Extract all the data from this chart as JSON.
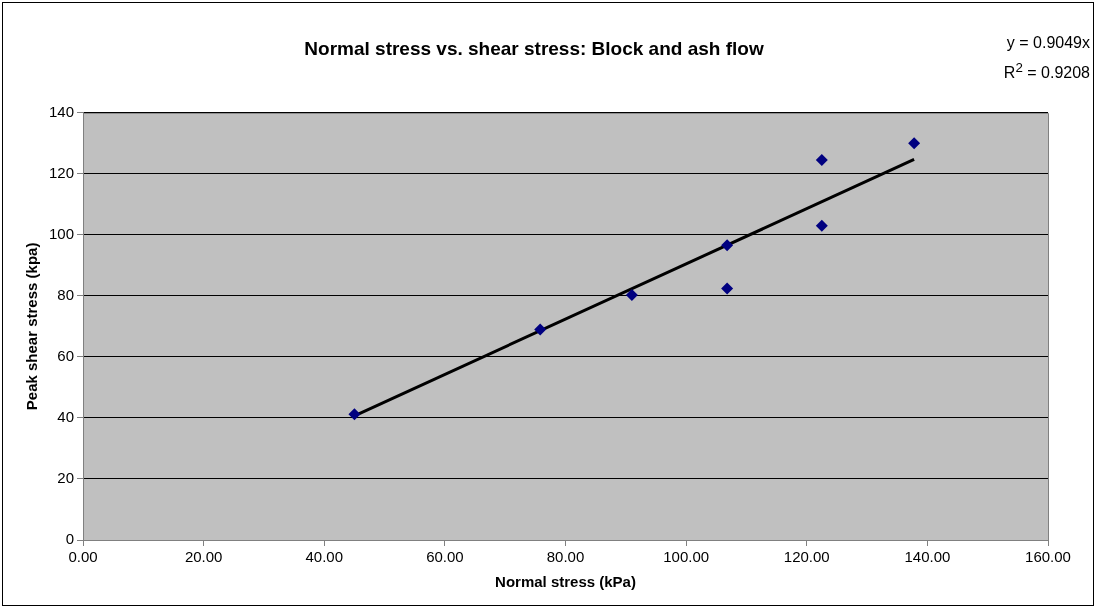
{
  "chart_data": {
    "type": "scatter",
    "title": "Normal stress vs. shear stress: Block and ash flow",
    "xlabel": "Normal stress (kPa)",
    "ylabel": "Peak shear stress (kpa)",
    "annotations": [
      "y = 0.9049x",
      "R$^{2}$ = 0.9208"
    ],
    "series": [
      {
        "color": "#000080",
        "x": [
          45,
          75.8,
          91,
          106.8,
          106.8,
          122.5,
          122.5,
          137.8
        ],
        "values": [
          41.2,
          69,
          80.3,
          96.6,
          82.4,
          124.5,
          103,
          130
        ],
        "marker": "diamond"
      },
      {
        "type": "line",
        "color": "#000000",
        "x": [
          45,
          137.8
        ],
        "values": [
          40.7,
          124.7
        ],
        "marker": "none",
        "line_style": "solid"
      }
    ],
    "xlim": [
      0,
      160
    ],
    "xticks": [
      {
        "value": 0,
        "label": "0.00"
      },
      {
        "value": 20,
        "label": "20.00"
      },
      {
        "value": 40,
        "label": "40.00"
      },
      {
        "value": 60,
        "label": "60.00"
      },
      {
        "value": 80,
        "label": "80.00"
      },
      {
        "value": 100,
        "label": "100.00"
      },
      {
        "value": 120,
        "label": "120.00"
      },
      {
        "value": 140,
        "label": "140.00"
      },
      {
        "value": 160,
        "label": "160.00"
      }
    ],
    "ylim": [
      0,
      140
    ],
    "yticks": [
      0,
      20,
      40,
      60,
      80,
      100,
      120,
      140
    ],
    "grid": "y",
    "legend": false
  }
}
